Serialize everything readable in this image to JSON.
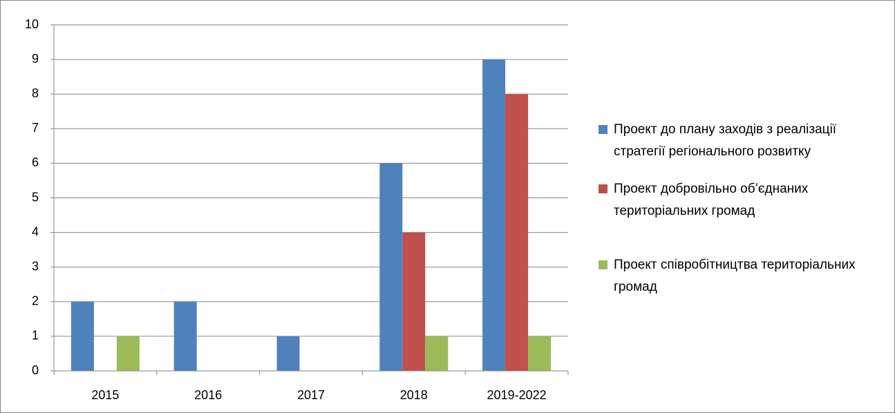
{
  "chart_data": {
    "type": "bar",
    "categories": [
      "2015",
      "2016",
      "2017",
      "2018",
      "2019-2022"
    ],
    "series": [
      {
        "name": "Проект до плану заходів з реалізації стратегії регіонального розвитку",
        "color": "#4f81bd",
        "values": [
          2,
          2,
          1,
          6,
          9
        ]
      },
      {
        "name": "Проект добровільно об’єднаних територіальних громад",
        "color": "#c0504d",
        "values": [
          0,
          0,
          0,
          4,
          8
        ]
      },
      {
        "name": "Проект співробітництва територіальних громад",
        "color": "#9bbb59",
        "values": [
          1,
          0,
          0,
          1,
          1
        ]
      }
    ],
    "ylim": [
      0,
      10
    ],
    "yticks": [
      0,
      1,
      2,
      3,
      4,
      5,
      6,
      7,
      8,
      9,
      10
    ],
    "grid": true,
    "legend": "right"
  }
}
